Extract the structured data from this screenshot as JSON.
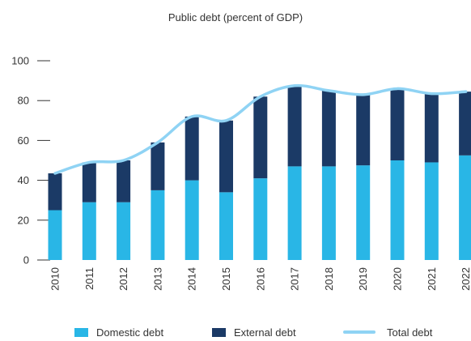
{
  "chart_data": {
    "type": "bar",
    "title": "Public debt (percent of GDP)",
    "xlabel": "",
    "ylabel": "",
    "categories": [
      "2010",
      "2011",
      "2012",
      "2013",
      "2014",
      "2015",
      "2016",
      "2017",
      "2018",
      "2019",
      "2020",
      "2021",
      "2022"
    ],
    "series": [
      {
        "name": "Domestic debt",
        "type": "stacked-bar",
        "color": "#29b6e6",
        "values": [
          25,
          29,
          29,
          35,
          40,
          34,
          41,
          47,
          47,
          47.5,
          50,
          49,
          52.5
        ]
      },
      {
        "name": "External debt",
        "type": "stacked-bar",
        "color": "#1b3a66",
        "values": [
          18.5,
          20,
          21,
          24,
          32,
          36,
          41,
          40.5,
          38,
          35.5,
          36,
          34.5,
          32
        ]
      },
      {
        "name": "Total debt",
        "type": "line",
        "color": "#8fd3f4",
        "values": [
          43.5,
          49,
          50,
          59,
          72,
          70,
          82,
          87.5,
          85,
          83,
          86,
          83.5,
          84.5
        ]
      }
    ],
    "ylim": [
      0,
      100
    ],
    "yticks": [
      0,
      20,
      40,
      60,
      80,
      100
    ],
    "grid": false,
    "legend_position": "bottom"
  }
}
